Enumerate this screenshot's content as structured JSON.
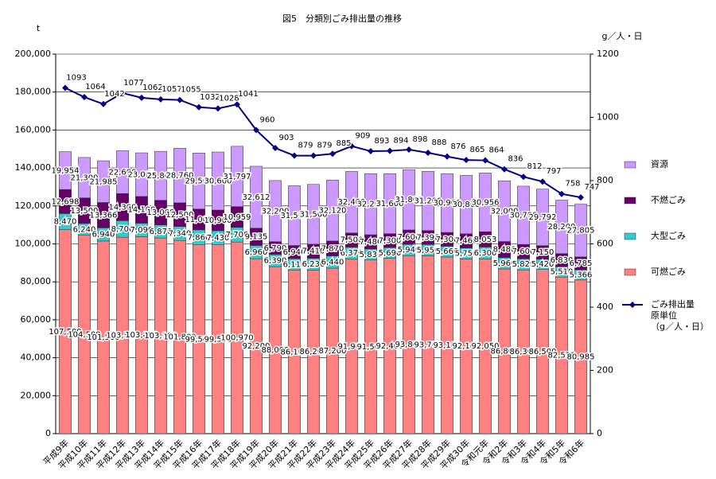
{
  "chart_data": {
    "type": "bar",
    "stacked": true,
    "title": "図5　分類別ごみ排出量の推移",
    "y_label": "t",
    "y2_label": "g／人・日",
    "categories": [
      "平成9年",
      "平成10年",
      "平成11年",
      "平成12年",
      "平成13年",
      "平成14年",
      "平成15年",
      "平成16年",
      "平成17年",
      "平成18年",
      "平成19年",
      "平成20年",
      "平成21年",
      "平成22年",
      "平成23年",
      "平成24年",
      "平成25年",
      "平成26年",
      "平成27年",
      "平成28年",
      "平成29年",
      "平成30年",
      "令和元年",
      "令和2年",
      "令和3年",
      "令和4年",
      "令和5年",
      "令和6年"
    ],
    "series": [
      {
        "name": "可燃ごみ",
        "color": "#ff8080",
        "type": "bar",
        "values": [
          107500,
          104500,
          101500,
          103500,
          103800,
          103100,
          101800,
          99500,
          99500,
          100970,
          92200,
          88000,
          86100,
          86200,
          87200,
          91900,
          91500,
          92400,
          93800,
          93700,
          93100,
          92100,
          92050,
          86800,
          86300,
          86500,
          82520,
          80985
        ],
        "value_labels": [
          "107,500",
          "104,500",
          "101,500",
          "103,500",
          "103,800",
          "103,100",
          "101,800",
          "99,500",
          "99,500",
          "100,970",
          "92,200",
          "88,000",
          "86,100",
          "86,200",
          "87,200",
          "91,900",
          "91,500",
          "92,400",
          "93,800",
          "93,700",
          "93,100",
          "92,100",
          "92,050",
          "86,800",
          "86,300",
          "86,500",
          "82,520",
          "80,985"
        ]
      },
      {
        "name": "大型ごみ",
        "color": "#33cccc",
        "type": "bar",
        "values": [
          8470,
          6240,
          6940,
          8700,
          7090,
          6870,
          7340,
          7860,
          7430,
          7700,
          6960,
          6390,
          6110,
          6230,
          6440,
          6370,
          5830,
          5690,
          5940,
          5950,
          5660,
          5750,
          6300,
          5960,
          5820,
          5420,
          5510,
          5366
        ],
        "value_labels": [
          "8,470",
          "6,240",
          "6,940",
          "8,700",
          "7,090",
          "6,870",
          "7,340",
          "7,860",
          "7,430",
          "7,700",
          "6,960",
          "6,390",
          "6,110",
          "6,230",
          "6,440",
          "6,370",
          "5,830",
          "5,690",
          "5,940",
          "5,950",
          "5,660",
          "5,750",
          "6,300",
          "5,960",
          "5,820",
          "5,420",
          "5,510",
          "5,366"
        ]
      },
      {
        "name": "不燃ごみ",
        "color": "#660066",
        "type": "bar",
        "values": [
          12698,
          13500,
          13366,
          14300,
          14100,
          13000,
          12500,
          11000,
          10900,
          10959,
          9135,
          6790,
          6940,
          7410,
          7870,
          7500,
          7480,
          7300,
          7600,
          7390,
          7300,
          7460,
          8053,
          8480,
          7600,
          7150,
          6830,
          6785
        ],
        "value_labels": [
          "12,698",
          "13,500",
          "13,366",
          "14,300",
          "14,100",
          "13,000",
          "12,500",
          "11,000",
          "10,900",
          "10,959",
          "9,135",
          "6,790",
          "6,940",
          "7,410",
          "7,870",
          "7,500",
          "7,480",
          "7,300",
          "7,600",
          "7,390",
          "7,300",
          "7,460",
          "8,053",
          "8,480",
          "7,600",
          "7,150",
          "6,830",
          "6,785"
        ]
      },
      {
        "name": "資源",
        "color": "#cc99ff",
        "type": "bar",
        "values": [
          19954,
          21300,
          21985,
          22600,
          23000,
          25800,
          28760,
          29500,
          30600,
          31797,
          32612,
          32200,
          31500,
          31500,
          32120,
          32400,
          32200,
          31600,
          31800,
          31200,
          30900,
          30800,
          30956,
          32000,
          30700,
          29792,
          28200,
          27805
        ],
        "value_labels": [
          "19,954",
          "21,300",
          "21,985",
          "22,600",
          "23,000",
          "25,800",
          "28,760",
          "29,500",
          "30,600",
          "31,797",
          "32,612",
          "32,200",
          "31,500",
          "31,500",
          "32,120",
          "32,400",
          "32,200",
          "31,600",
          "31,800",
          "31,200",
          "30,900",
          "30,800",
          "30,956",
          "32,000",
          "30,700",
          "29,792",
          "28,200",
          "27,805"
        ]
      },
      {
        "name": "ごみ排出量\n原単位\n（g／人・日）",
        "color": "#000080",
        "type": "line",
        "axis": "y2",
        "values": [
          1093,
          1064,
          1042,
          1077,
          1062,
          1057,
          1055,
          1032,
          1028,
          1041,
          960,
          903,
          879,
          879,
          885,
          909,
          893,
          894,
          898,
          888,
          876,
          865,
          864,
          836,
          812,
          797,
          758,
          747
        ]
      }
    ],
    "ylim": [
      0,
      200000
    ],
    "yticks": [
      {
        "value": 0,
        "label": "0"
      },
      {
        "value": 20000,
        "label": "20,000"
      },
      {
        "value": 40000,
        "label": "40,000"
      },
      {
        "value": 60000,
        "label": "60,000"
      },
      {
        "value": 80000,
        "label": "80,000"
      },
      {
        "value": 100000,
        "label": "100,000"
      },
      {
        "value": 120000,
        "label": "120,000"
      },
      {
        "value": 140000,
        "label": "140,000"
      },
      {
        "value": 160000,
        "label": "160,000"
      },
      {
        "value": 180000,
        "label": "180,000"
      },
      {
        "value": 200000,
        "label": "200,000"
      }
    ],
    "y2lim": [
      0,
      1200
    ],
    "y2ticks": [
      0,
      200,
      400,
      600,
      800,
      1000,
      1200
    ],
    "grid": true,
    "legend": "right"
  }
}
